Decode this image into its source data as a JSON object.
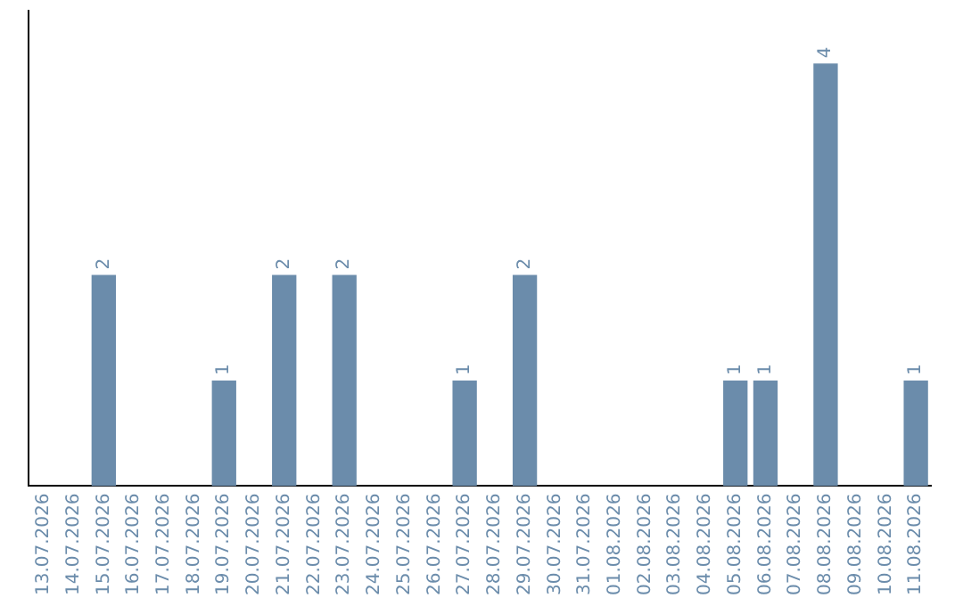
{
  "chart_data": {
    "type": "bar",
    "categories": [
      "13.07.2026",
      "14.07.2026",
      "15.07.2026",
      "16.07.2026",
      "17.07.2026",
      "18.07.2026",
      "19.07.2026",
      "20.07.2026",
      "21.07.2026",
      "22.07.2026",
      "23.07.2026",
      "24.07.2026",
      "25.07.2026",
      "26.07.2026",
      "27.07.2026",
      "28.07.2026",
      "29.07.2026",
      "30.07.2026",
      "31.07.2026",
      "01.08.2026",
      "02.08.2026",
      "03.08.2026",
      "04.08.2026",
      "05.08.2026",
      "06.08.2026",
      "07.08.2026",
      "08.08.2026",
      "09.08.2026",
      "10.08.2026",
      "11.08.2026"
    ],
    "values": [
      0,
      0,
      2,
      0,
      0,
      0,
      1,
      0,
      2,
      0,
      2,
      0,
      0,
      0,
      1,
      0,
      2,
      0,
      0,
      0,
      0,
      0,
      0,
      1,
      1,
      0,
      4,
      0,
      0,
      1
    ],
    "value_labels": [
      null,
      null,
      "2",
      null,
      null,
      null,
      "1",
      null,
      "2",
      null,
      "2",
      null,
      null,
      null,
      "1",
      null,
      "2",
      null,
      null,
      null,
      null,
      null,
      null,
      "1",
      "1",
      null,
      "4",
      null,
      null,
      "1"
    ],
    "color": "#6b8cab",
    "tick_labels": "x",
    "grid": false,
    "legend": false
  }
}
